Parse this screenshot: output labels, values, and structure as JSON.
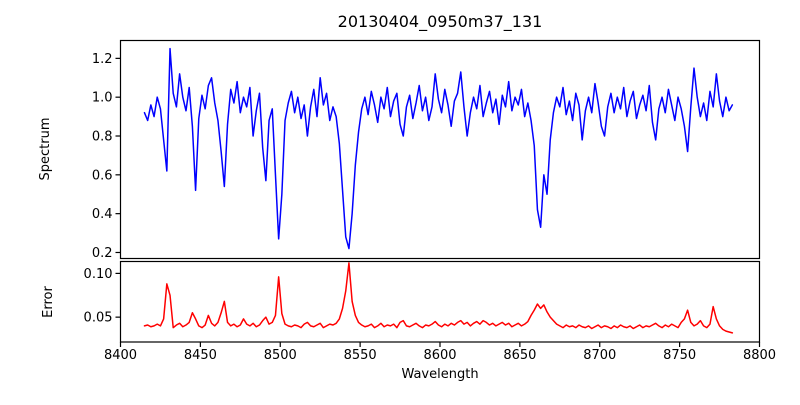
{
  "figure": {
    "background": "#ffffff",
    "text_color": "#000000",
    "spine_color": "#000000"
  },
  "chart_data": {
    "type": "line",
    "title": "20130404_0950m37_131",
    "xlabel": "Wavelength",
    "xlim": [
      8400,
      8800
    ],
    "xticks": [
      8400,
      8450,
      8500,
      8550,
      8600,
      8650,
      8700,
      8750,
      8800
    ],
    "xtick_labels": [
      "8400",
      "8450",
      "8500",
      "8550",
      "8600",
      "8650",
      "8700",
      "8750",
      "8800"
    ],
    "grid": false,
    "legend": null,
    "panels": [
      {
        "name": "spectrum",
        "ylabel": "Spectrum",
        "ylim": [
          0.169,
          1.292
        ],
        "yticks": [
          0.2,
          0.4,
          0.6,
          0.8,
          1.0,
          1.2
        ],
        "ytick_labels": [
          "0.2",
          "0.4",
          "0.6",
          "0.8",
          "1.0",
          "1.2"
        ],
        "line_color": "#0000ff",
        "x_start": 8415,
        "x_step": 2,
        "y": [
          0.92,
          0.88,
          0.96,
          0.9,
          1.0,
          0.94,
          0.78,
          0.62,
          1.25,
          1.02,
          0.95,
          1.12,
          1.0,
          0.93,
          1.05,
          0.85,
          0.52,
          0.89,
          1.01,
          0.94,
          1.06,
          1.1,
          0.97,
          0.88,
          0.72,
          0.54,
          0.86,
          1.04,
          0.97,
          1.08,
          0.92,
          1.0,
          0.95,
          1.05,
          0.8,
          0.93,
          1.02,
          0.74,
          0.57,
          0.88,
          0.94,
          0.6,
          0.27,
          0.5,
          0.88,
          0.97,
          1.03,
          0.92,
          1.0,
          0.89,
          0.96,
          0.8,
          0.95,
          1.04,
          0.9,
          1.1,
          0.96,
          1.02,
          0.88,
          0.95,
          0.9,
          0.76,
          0.52,
          0.28,
          0.22,
          0.4,
          0.65,
          0.82,
          0.94,
          1.0,
          0.91,
          1.03,
          0.96,
          0.87,
          1.0,
          0.94,
          1.05,
          0.9,
          0.98,
          1.02,
          0.86,
          0.8,
          0.95,
          1.01,
          0.89,
          0.97,
          1.06,
          0.93,
          1.0,
          0.88,
          0.95,
          1.12,
          0.99,
          0.92,
          1.04,
          0.96,
          0.85,
          0.98,
          1.02,
          1.13,
          0.95,
          0.8,
          0.92,
          1.0,
          0.94,
          1.06,
          0.9,
          0.97,
          1.03,
          0.92,
          0.99,
          0.86,
          1.01,
          0.95,
          1.08,
          0.93,
          1.0,
          0.96,
          1.04,
          0.9,
          0.97,
          0.88,
          0.75,
          0.42,
          0.33,
          0.6,
          0.5,
          0.78,
          0.92,
          1.0,
          0.95,
          1.05,
          0.91,
          0.98,
          0.88,
          1.02,
          0.96,
          0.78,
          0.93,
          1.0,
          0.92,
          1.07,
          0.97,
          0.85,
          0.8,
          0.95,
          1.02,
          0.92,
          1.0,
          0.94,
          1.05,
          0.9,
          0.98,
          1.03,
          0.89,
          0.96,
          1.01,
          0.93,
          1.06,
          0.87,
          0.78,
          0.94,
          1.0,
          0.92,
          1.04,
          0.96,
          0.88,
          1.0,
          0.94,
          0.85,
          0.72,
          0.95,
          1.15,
          1.0,
          0.9,
          0.97,
          0.88,
          1.03,
          0.95,
          1.12,
          0.98,
          0.9,
          1.0,
          0.93,
          0.96
        ]
      },
      {
        "name": "error",
        "ylabel": "Error",
        "ylim": [
          0.0216,
          0.1136
        ],
        "yticks": [
          0.05,
          0.1
        ],
        "ytick_labels": [
          "0.05",
          "0.10"
        ],
        "line_color": "#ff0000",
        "x_start": 8415,
        "x_step": 2,
        "y": [
          0.04,
          0.041,
          0.039,
          0.04,
          0.042,
          0.04,
          0.048,
          0.088,
          0.075,
          0.038,
          0.041,
          0.043,
          0.039,
          0.041,
          0.044,
          0.055,
          0.048,
          0.04,
          0.038,
          0.041,
          0.052,
          0.043,
          0.04,
          0.044,
          0.055,
          0.068,
          0.044,
          0.04,
          0.042,
          0.039,
          0.041,
          0.048,
          0.042,
          0.04,
          0.043,
          0.039,
          0.041,
          0.046,
          0.05,
          0.042,
          0.044,
          0.052,
          0.096,
          0.054,
          0.042,
          0.04,
          0.039,
          0.041,
          0.04,
          0.038,
          0.042,
          0.044,
          0.04,
          0.039,
          0.041,
          0.043,
          0.038,
          0.04,
          0.042,
          0.041,
          0.043,
          0.048,
          0.06,
          0.08,
          0.112,
          0.068,
          0.052,
          0.044,
          0.041,
          0.039,
          0.04,
          0.042,
          0.038,
          0.04,
          0.043,
          0.039,
          0.041,
          0.04,
          0.042,
          0.038,
          0.044,
          0.046,
          0.04,
          0.039,
          0.041,
          0.043,
          0.04,
          0.038,
          0.041,
          0.04,
          0.042,
          0.045,
          0.041,
          0.039,
          0.042,
          0.04,
          0.043,
          0.041,
          0.044,
          0.046,
          0.042,
          0.044,
          0.04,
          0.043,
          0.045,
          0.042,
          0.046,
          0.044,
          0.041,
          0.043,
          0.04,
          0.042,
          0.044,
          0.041,
          0.043,
          0.039,
          0.041,
          0.043,
          0.04,
          0.042,
          0.045,
          0.052,
          0.058,
          0.065,
          0.06,
          0.064,
          0.056,
          0.05,
          0.046,
          0.042,
          0.04,
          0.038,
          0.041,
          0.039,
          0.04,
          0.038,
          0.041,
          0.039,
          0.038,
          0.04,
          0.037,
          0.039,
          0.041,
          0.038,
          0.04,
          0.039,
          0.037,
          0.04,
          0.038,
          0.041,
          0.039,
          0.038,
          0.04,
          0.037,
          0.039,
          0.041,
          0.038,
          0.04,
          0.039,
          0.041,
          0.043,
          0.04,
          0.038,
          0.041,
          0.039,
          0.042,
          0.04,
          0.038,
          0.044,
          0.048,
          0.058,
          0.044,
          0.04,
          0.042,
          0.046,
          0.04,
          0.038,
          0.042,
          0.062,
          0.048,
          0.04,
          0.036,
          0.034,
          0.033,
          0.032
        ]
      }
    ]
  }
}
